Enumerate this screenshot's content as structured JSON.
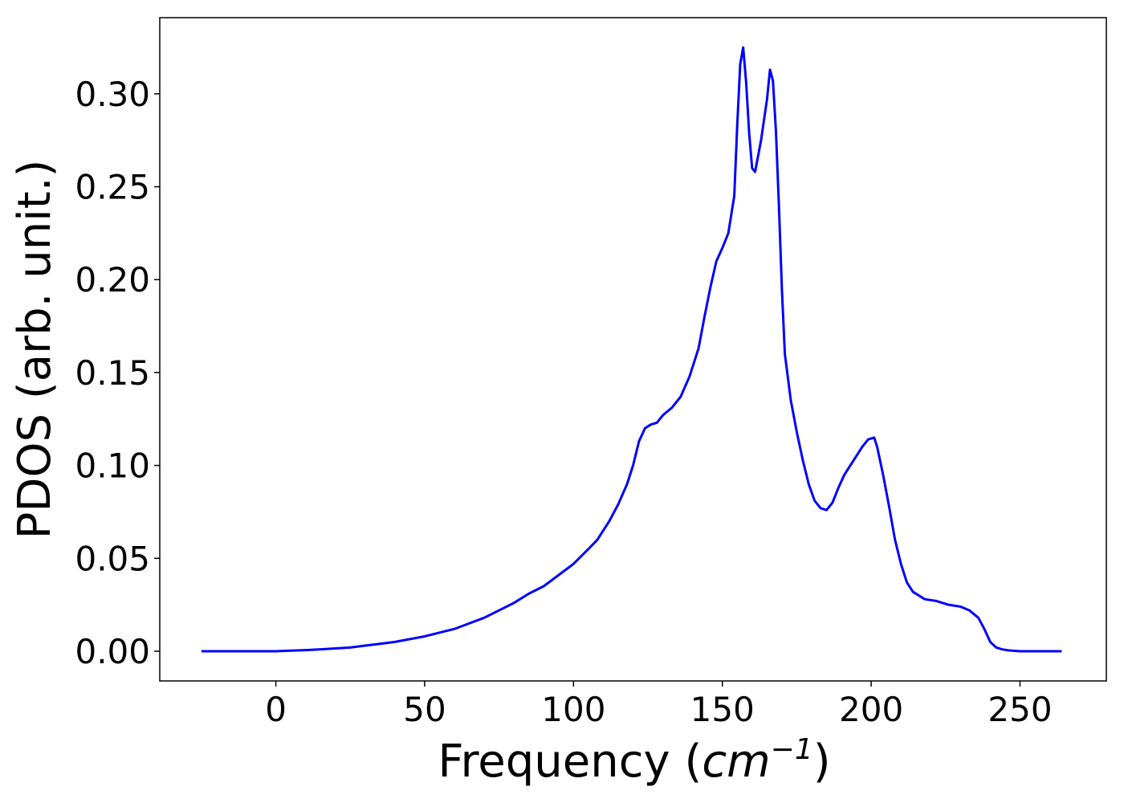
{
  "chart_data": {
    "type": "line",
    "xlabel": "Frequency",
    "xlabel_unit_base": "cm",
    "xlabel_unit_exponent": "−1",
    "ylabel": "PDOS (arb. unit.)",
    "xlim": [
      -39,
      279
    ],
    "ylim": [
      -0.016,
      0.341
    ],
    "x_ticks": [
      0,
      50,
      100,
      150,
      200,
      250
    ],
    "x_tick_labels": [
      "0",
      "50",
      "100",
      "150",
      "200",
      "250"
    ],
    "y_ticks": [
      0.0,
      0.05,
      0.1,
      0.15,
      0.2,
      0.25,
      0.3
    ],
    "y_tick_labels": [
      "0.00",
      "0.05",
      "0.10",
      "0.15",
      "0.20",
      "0.25",
      "0.30"
    ],
    "grid": false,
    "legend": "none",
    "line_color": "#0000ff",
    "series": [
      {
        "x": [
          -25,
          0,
          5,
          10,
          15,
          20,
          25,
          30,
          35,
          40,
          45,
          50,
          55,
          60,
          65,
          70,
          75,
          80,
          85,
          90,
          95,
          100,
          105,
          108,
          112,
          115,
          118,
          120,
          122,
          124,
          126,
          128,
          130,
          133,
          136,
          139,
          142,
          144,
          146,
          148,
          150,
          152,
          154,
          155,
          156,
          157,
          158,
          159,
          160,
          161,
          163,
          165,
          166,
          167,
          168,
          169,
          170,
          171,
          173,
          175,
          177,
          179,
          181,
          183,
          185,
          187,
          189,
          191,
          193,
          195,
          197,
          199,
          201,
          202,
          204,
          206,
          208,
          210,
          212,
          214,
          216,
          218,
          222,
          226,
          230,
          233,
          236,
          238,
          240,
          242,
          244,
          246,
          250,
          264
        ],
        "y": [
          0,
          0,
          0.0003,
          0.0006,
          0.001,
          0.0015,
          0.002,
          0.003,
          0.004,
          0.005,
          0.0065,
          0.008,
          0.01,
          0.012,
          0.015,
          0.018,
          0.022,
          0.026,
          0.031,
          0.035,
          0.041,
          0.047,
          0.055,
          0.06,
          0.07,
          0.079,
          0.09,
          0.1,
          0.113,
          0.12,
          0.122,
          0.123,
          0.127,
          0.131,
          0.137,
          0.148,
          0.163,
          0.18,
          0.196,
          0.21,
          0.217,
          0.225,
          0.245,
          0.283,
          0.316,
          0.325,
          0.306,
          0.279,
          0.26,
          0.258,
          0.275,
          0.297,
          0.313,
          0.307,
          0.28,
          0.24,
          0.195,
          0.16,
          0.135,
          0.118,
          0.103,
          0.09,
          0.081,
          0.077,
          0.076,
          0.08,
          0.088,
          0.095,
          0.1,
          0.105,
          0.11,
          0.114,
          0.115,
          0.11,
          0.095,
          0.078,
          0.06,
          0.047,
          0.037,
          0.032,
          0.03,
          0.028,
          0.027,
          0.025,
          0.024,
          0.022,
          0.018,
          0.012,
          0.005,
          0.002,
          0.001,
          0.0005,
          0,
          0
        ]
      }
    ]
  }
}
